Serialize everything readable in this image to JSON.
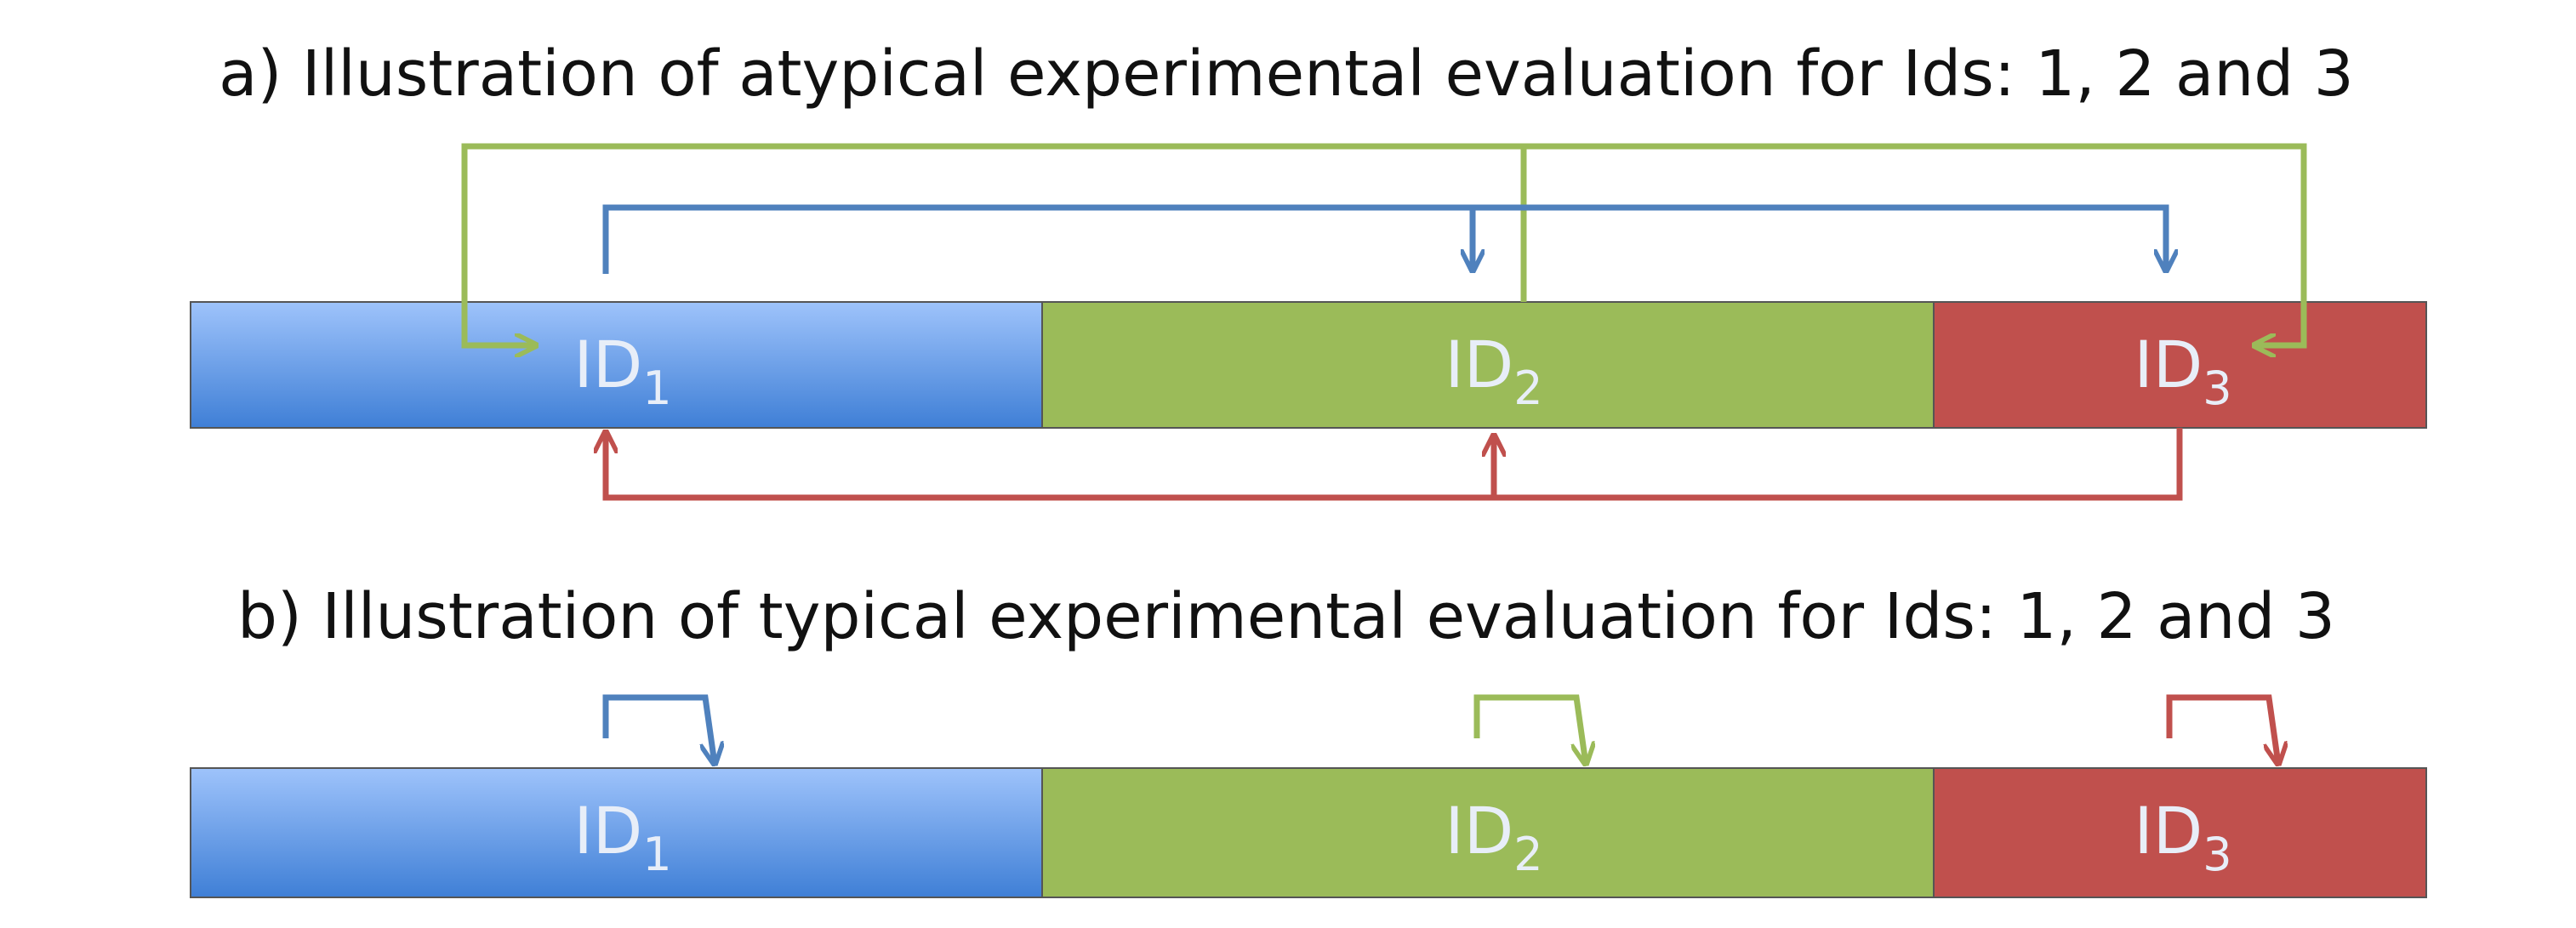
{
  "panels": [
    {
      "title": "a) Illustration of atypical experimental evaluation for Ids: 1, 2 and 3",
      "segments": [
        {
          "label": "ID",
          "subscript": "1"
        },
        {
          "label": "ID",
          "subscript": "2"
        },
        {
          "label": "ID",
          "subscript": "3"
        }
      ]
    },
    {
      "title": "b) Illustration of typical experimental evaluation for Ids: 1, 2 and 3",
      "segments": [
        {
          "label": "ID",
          "subscript": "1"
        },
        {
          "label": "ID",
          "subscript": "2"
        },
        {
          "label": "ID",
          "subscript": "3"
        }
      ]
    }
  ]
}
